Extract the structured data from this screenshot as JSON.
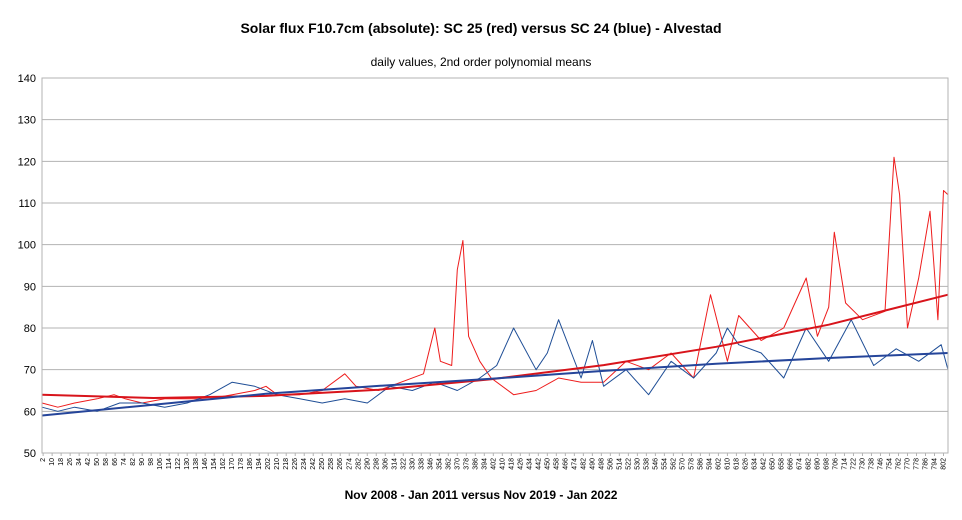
{
  "chart_data": {
    "type": "line",
    "title": "Solar flux F10.7cm (absolute): SC 25 (red) versus SC 24 (blue) - Alvestad",
    "subtitle": "daily values, 2nd order polynomial means",
    "xlabel": "Nov 2008 - Jan 2011 versus Nov 2019 - Jan 2022",
    "ylabel": "",
    "ylim": [
      50,
      140
    ],
    "yticks": [
      50,
      60,
      70,
      80,
      90,
      100,
      110,
      120,
      130,
      140
    ],
    "xlim": [
      1,
      806
    ],
    "xtick_start": 2,
    "xtick_step": 8,
    "xtick_end": 802,
    "grid": "horizontal",
    "series": [
      {
        "name": "SC 25",
        "color": "#ee1c1c",
        "x": [
          1,
          15,
          30,
          50,
          65,
          75,
          90,
          110,
          130,
          150,
          170,
          190,
          200,
          210,
          230,
          250,
          270,
          280,
          300,
          320,
          340,
          350,
          355,
          365,
          370,
          375,
          380,
          390,
          400,
          420,
          440,
          460,
          480,
          500,
          520,
          540,
          560,
          580,
          595,
          610,
          620,
          640,
          660,
          680,
          690,
          700,
          705,
          715,
          730,
          750,
          758,
          763,
          770,
          780,
          790,
          797,
          802,
          806
        ],
        "values": [
          62,
          61,
          62,
          63,
          64,
          63,
          62,
          63,
          63,
          63,
          64,
          65,
          66,
          64,
          64,
          65,
          69,
          66,
          65,
          67,
          69,
          80,
          72,
          71,
          94,
          101,
          78,
          72,
          68,
          64,
          65,
          68,
          67,
          67,
          72,
          70,
          74,
          68,
          88,
          72,
          83,
          77,
          80,
          92,
          78,
          85,
          103,
          86,
          82,
          84,
          121,
          112,
          80,
          92,
          108,
          82,
          113,
          112
        ]
      },
      {
        "name": "SC 24",
        "color": "#1f4e96",
        "x": [
          1,
          15,
          30,
          50,
          70,
          90,
          110,
          130,
          150,
          170,
          190,
          210,
          230,
          250,
          270,
          290,
          310,
          330,
          350,
          370,
          390,
          405,
          420,
          440,
          450,
          460,
          480,
          490,
          500,
          520,
          540,
          560,
          580,
          600,
          610,
          620,
          640,
          660,
          680,
          700,
          720,
          740,
          760,
          780,
          800,
          806
        ],
        "values": [
          61,
          60,
          61,
          60,
          62,
          62,
          61,
          62,
          64,
          67,
          66,
          64,
          63,
          62,
          63,
          62,
          66,
          65,
          67,
          65,
          68,
          71,
          80,
          70,
          74,
          82,
          68,
          77,
          66,
          70,
          64,
          72,
          68,
          74,
          80,
          76,
          74,
          68,
          80,
          72,
          82,
          71,
          75,
          72,
          76,
          70
        ]
      },
      {
        "name": "SC 25 polynomial mean",
        "color": "#d8141b",
        "x": [
          1,
          100,
          200,
          300,
          400,
          500,
          600,
          700,
          806
        ],
        "values": [
          64,
          63.2,
          63.7,
          65.2,
          67.7,
          71.1,
          75.5,
          80.8,
          88
        ]
      },
      {
        "name": "SC 24 polynomial mean",
        "color": "#25459a",
        "x": [
          1,
          100,
          200,
          300,
          400,
          500,
          600,
          700,
          806
        ],
        "values": [
          59,
          61.6,
          64.2,
          66.1,
          67.8,
          69.7,
          71.4,
          72.8,
          74
        ]
      }
    ]
  }
}
